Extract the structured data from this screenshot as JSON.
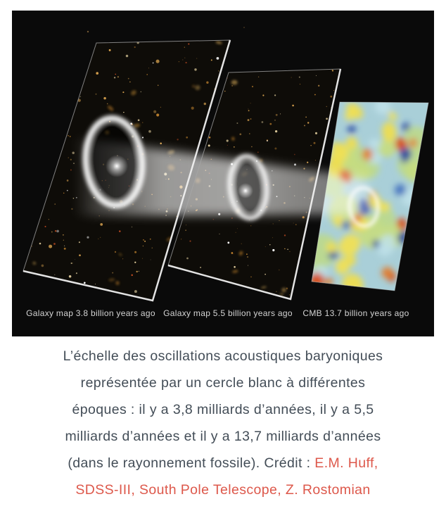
{
  "figure": {
    "background": "#0a0a0a",
    "ring_color": "#ffffff",
    "beam_color": "#ffffff",
    "label_color": "#d4d4d4",
    "labels": [
      "Galaxy map 3.8 billion years ago",
      "Galaxy map 5.5 billion years ago",
      "CMB 13.7 billion years ago"
    ]
  },
  "caption": {
    "text_color": "#434d57",
    "link_color": "#dd584b",
    "line1": "L’échelle des oscillations acoustiques baryoniques",
    "line2": "représentée par un cercle blanc à différentes",
    "line3": "époques : il y a 3,8 milliards d’années, il y a 5,5",
    "line4": "milliards d’années et il y a 13,7 milliards d’années",
    "line5_text": "(dans le rayonnement fossile). Crédit : ",
    "line5_link": "E.M. Huff,",
    "line6_link": "SDSS-III, South Pole Telescope, Z. Rostomian"
  }
}
